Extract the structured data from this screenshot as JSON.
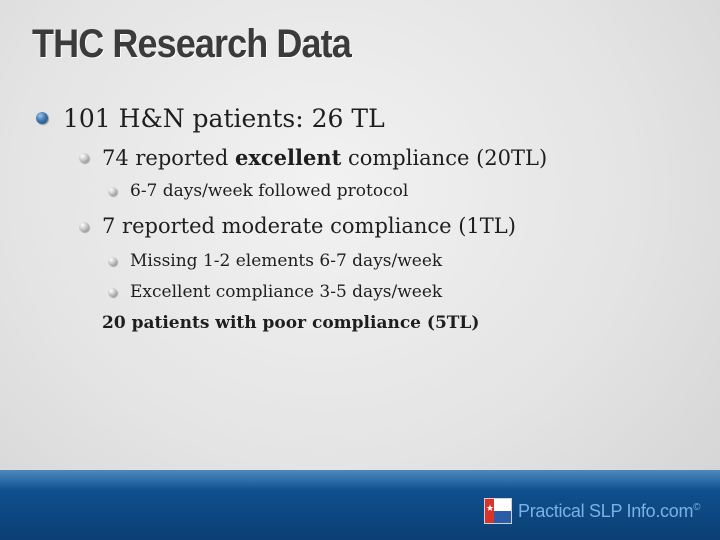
{
  "slide": {
    "title": "THC Research Data",
    "lines": {
      "l1": "101 H&N patients: 26 TL",
      "l2a_pre": "74 reported ",
      "l2a_bold": "excellent",
      "l2a_post": " compliance (20TL)",
      "l3a": "6-7 days/week followed protocol",
      "l2b": "7 reported moderate compliance (1TL)",
      "l3b": "Missing 1-2 elements 6-7 days/week",
      "l3c": "Excellent compliance 3-5 days/week",
      "l4": "20 patients with poor compliance (5TL)"
    }
  },
  "footer": {
    "logo_text": "Practical SLP Info.com",
    "logo_mark": "©",
    "flag_icon": "texas-flag-icon",
    "flag_star": "★"
  },
  "colors": {
    "footer_blue": "#0f4f8d",
    "logo_text": "#7ab2e6",
    "bullet_blue": "#3f77b3"
  }
}
